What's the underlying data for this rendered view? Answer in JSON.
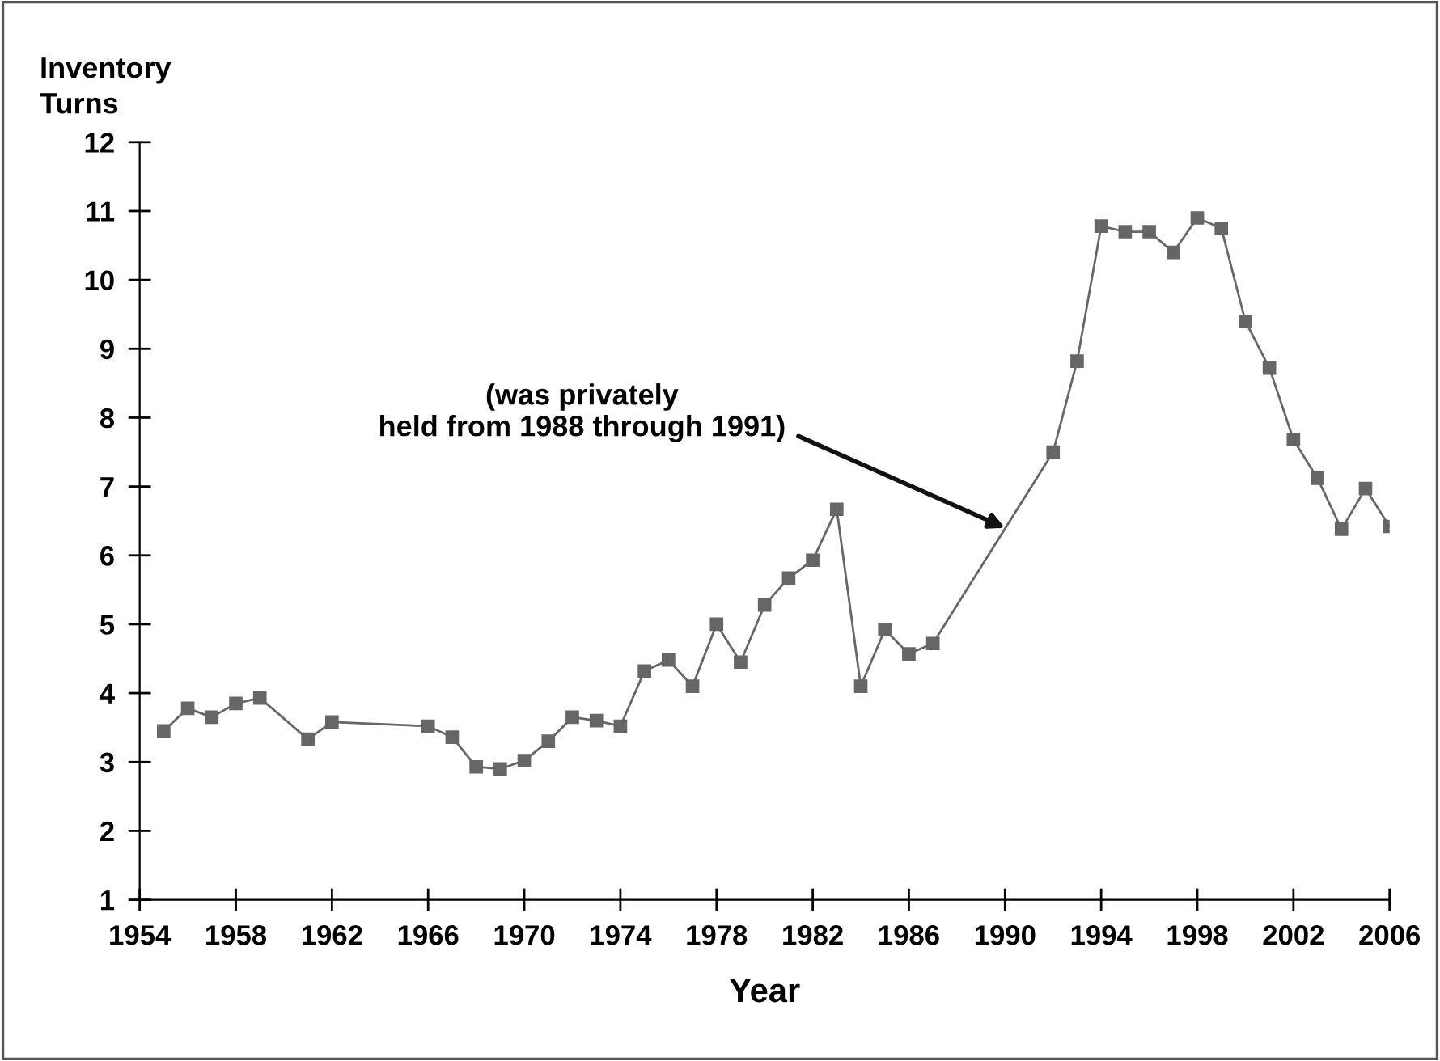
{
  "chart_data": {
    "type": "line",
    "xlabel": "Year",
    "ylabel": "Inventory\nTurns",
    "x": [
      1955,
      1956,
      1957,
      1958,
      1959,
      1961,
      1962,
      1966,
      1967,
      1968,
      1969,
      1970,
      1971,
      1972,
      1973,
      1974,
      1975,
      1976,
      1977,
      1978,
      1979,
      1980,
      1981,
      1982,
      1983,
      1984,
      1985,
      1986,
      1987,
      1992,
      1993,
      1994,
      1995,
      1996,
      1997,
      1998,
      1999,
      2000,
      2001,
      2002,
      2003,
      2004,
      2005,
      2006
    ],
    "series": [
      {
        "color": "#666666",
        "values": [
          3.45,
          3.78,
          3.65,
          3.85,
          3.93,
          3.33,
          3.58,
          3.52,
          3.36,
          2.93,
          2.9,
          3.02,
          3.3,
          3.65,
          3.6,
          3.52,
          4.32,
          4.48,
          4.1,
          5.0,
          4.45,
          5.28,
          5.67,
          5.93,
          6.67,
          4.1,
          4.92,
          4.57,
          4.72,
          7.5,
          8.82,
          10.78,
          10.7,
          10.7,
          10.4,
          10.9,
          10.75,
          9.4,
          8.72,
          7.68,
          7.12,
          6.38,
          6.97,
          6.42
        ]
      }
    ],
    "xlim": [
      1954,
      2006
    ],
    "xticks": [
      1954,
      1958,
      1962,
      1966,
      1970,
      1974,
      1978,
      1982,
      1986,
      1990,
      1994,
      1998,
      2002,
      2006
    ],
    "ylim": [
      1,
      12
    ],
    "yticks": [
      1,
      2,
      3,
      4,
      5,
      6,
      7,
      8,
      9,
      10,
      11,
      12
    ],
    "annotations": [
      {
        "text": "(was privately\nheld from 1988 through 1991)",
        "x": 1990,
        "y": 6.4
      }
    ],
    "marker": "square",
    "line_style": "solid",
    "grid": false,
    "legend": false
  }
}
